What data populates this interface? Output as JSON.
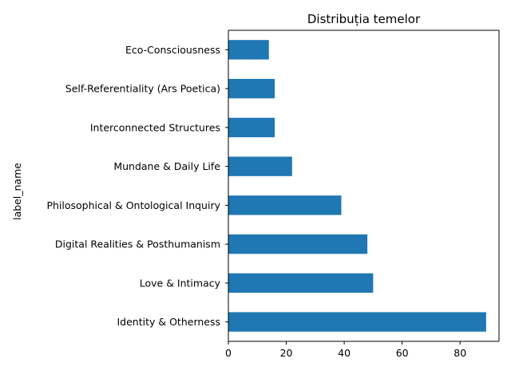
{
  "chart_data": {
    "type": "bar",
    "orientation": "horizontal",
    "title": "Distribuția temelor",
    "xlabel": "",
    "ylabel": "label_name",
    "categories": [
      "Identity & Otherness",
      "Love & Intimacy",
      "Digital Realities & Posthumanism",
      "Philosophical & Ontological Inquiry",
      "Mundane & Daily Life",
      "Interconnected Structures",
      "Self-Referentiality (Ars Poetica)",
      "Eco-Consciousness"
    ],
    "values": [
      89,
      50,
      48,
      39,
      22,
      16,
      16,
      14
    ],
    "xlim": [
      0,
      93.45
    ],
    "xticks": [
      0,
      20,
      40,
      60,
      80
    ],
    "grid": false,
    "bar_color": "#1f77b4"
  }
}
